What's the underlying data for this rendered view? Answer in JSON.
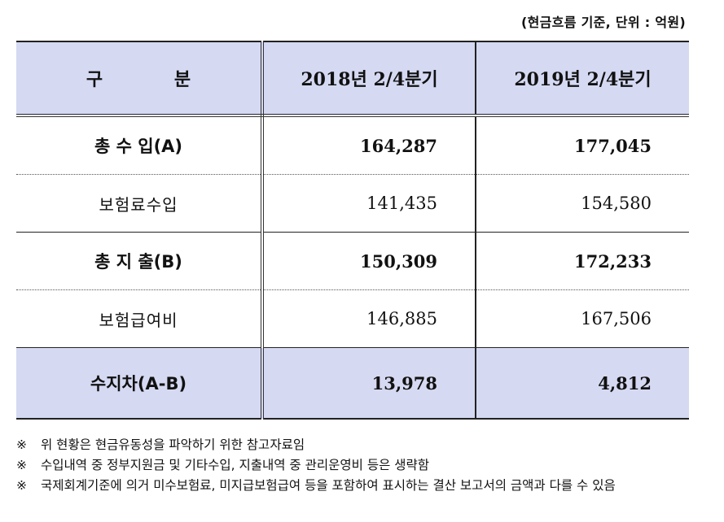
{
  "unit_note": "(현금흐름 기준, 단위 : 억원)",
  "table": {
    "header": {
      "category": "구 분",
      "col1": "2018년 2/4분기",
      "col2": "2019년 2/4분기"
    },
    "rows": [
      {
        "label": "총 수 입(A)",
        "v2018": "164,287",
        "v2019": "177,045"
      },
      {
        "label": "보험료수입",
        "v2018": "141,435",
        "v2019": "154,580"
      },
      {
        "label": "총 지 출(B)",
        "v2018": "150,309",
        "v2019": "172,233"
      },
      {
        "label": "보험급여비",
        "v2018": "146,885",
        "v2019": "167,506"
      },
      {
        "label": "수지차(A-B)",
        "v2018": "13,978",
        "v2019": "4,812"
      }
    ]
  },
  "notes": [
    {
      "mark": "※",
      "text": "위 현황은 현금유동성을 파악하기 위한 참고자료임"
    },
    {
      "mark": "※",
      "text": "수입내역 중 정부지원금 및 기타수입, 지출내역 중 관리운영비 등은 생략함"
    },
    {
      "mark": "※",
      "text": "국제회계기준에 의거 미수보험료, 미지급보험급여 등을 포함하여 표시하는 결산 보고서의 금액과 다를 수 있음"
    }
  ]
}
